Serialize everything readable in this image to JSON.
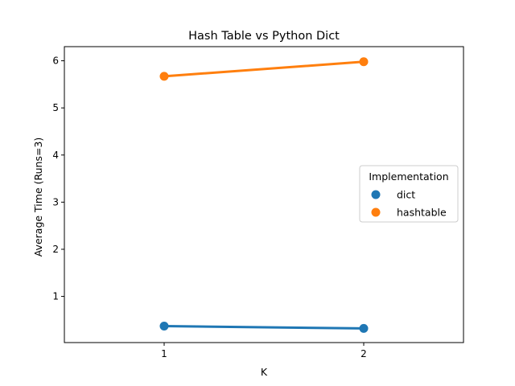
{
  "chart_data": {
    "type": "line",
    "title": "Hash Table vs Python Dict",
    "xlabel": "K",
    "ylabel": "Average Time (Runs=3)",
    "categories": [
      "1",
      "2"
    ],
    "ylim": [
      0.02,
      6.3
    ],
    "yticks": [
      1,
      2,
      3,
      4,
      5,
      6
    ],
    "grid": false,
    "legend": {
      "title": "Implementation",
      "placement": "center-right"
    },
    "series": [
      {
        "name": "dict",
        "values": [
          0.37,
          0.32
        ],
        "color": "#1f77b4"
      },
      {
        "name": "hashtable",
        "values": [
          5.67,
          5.98
        ],
        "color": "#ff7f0e"
      }
    ]
  }
}
